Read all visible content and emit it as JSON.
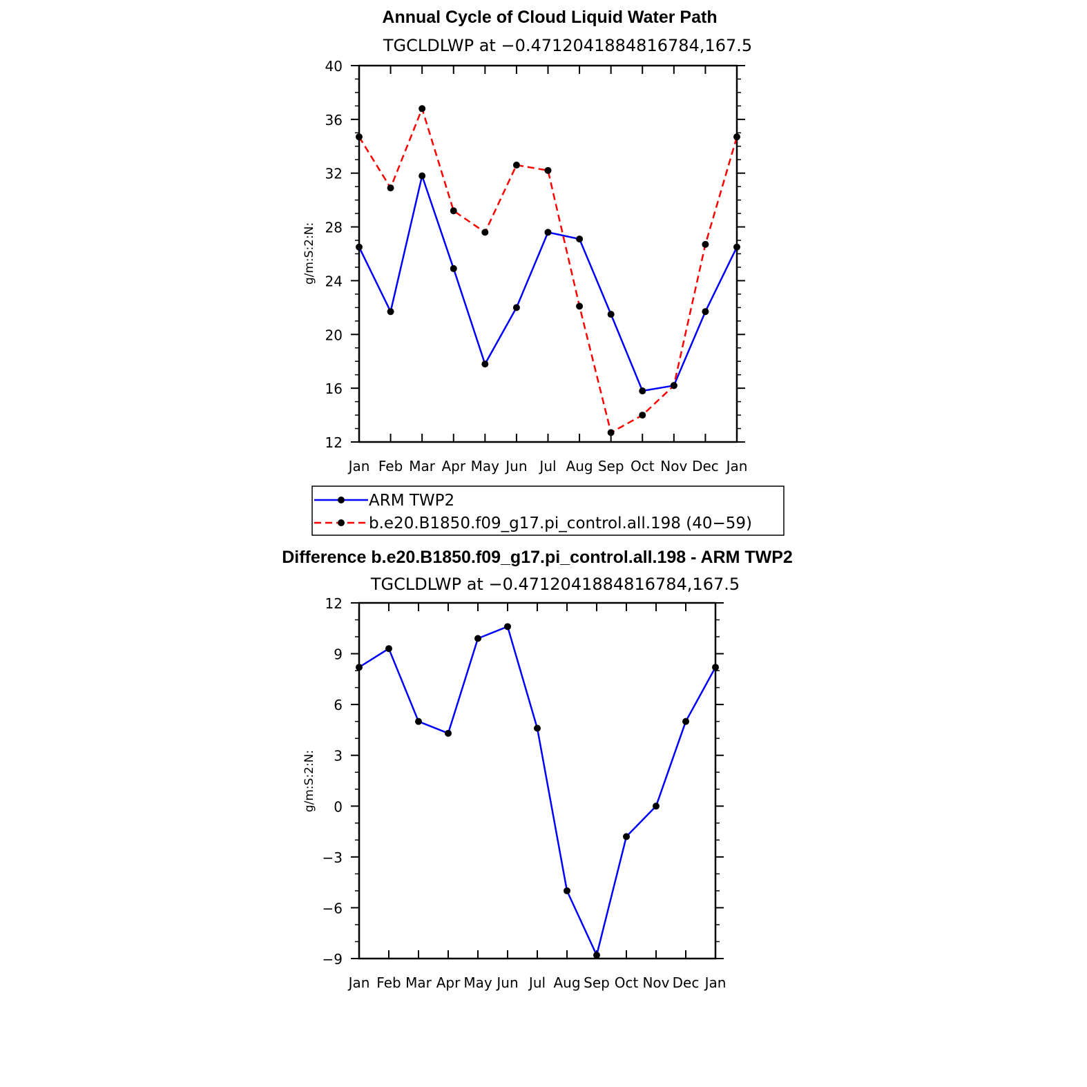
{
  "chart_data": [
    {
      "type": "line",
      "title": "Annual Cycle of Cloud Liquid Water Path",
      "subtitle": "TGCLDLWP at −0.4712041884816784,167.5",
      "ylabel": "g/m:S:2:N:",
      "ylim": [
        12,
        40
      ],
      "yticks": [
        "40",
        "36",
        "32",
        "28",
        "24",
        "20",
        "16",
        "12"
      ],
      "categories": [
        "Jan",
        "Feb",
        "Mar",
        "Apr",
        "May",
        "Jun",
        "Jul",
        "Aug",
        "Sep",
        "Oct",
        "Nov",
        "Dec",
        "Jan"
      ],
      "series": [
        {
          "name": "ARM TWP2",
          "color": "#0000ff",
          "dash": "solid",
          "values": [
            26.5,
            21.7,
            31.8,
            24.9,
            17.8,
            22.0,
            27.6,
            27.1,
            21.5,
            15.8,
            16.2,
            21.7,
            26.5
          ]
        },
        {
          "name": "b.e20.B1850.f09_g17.pi_control.all.198 (40−59)",
          "color": "#ff0000",
          "dash": "dashed",
          "values": [
            34.7,
            30.9,
            36.8,
            29.2,
            27.6,
            32.6,
            32.2,
            22.1,
            12.7,
            14.0,
            16.2,
            26.7,
            34.7
          ]
        }
      ],
      "legend_position": "bottom"
    },
    {
      "type": "line",
      "title": "Difference b.e20.B1850.f09_g17.pi_control.all.198 - ARM TWP2",
      "subtitle": "TGCLDLWP at −0.4712041884816784,167.5",
      "ylabel": "g/m:S:2:N:",
      "ylim": [
        -9,
        12
      ],
      "yticks": [
        "12",
        "9",
        "6",
        "3",
        "0",
        "−3",
        "−6",
        "−9"
      ],
      "categories": [
        "Jan",
        "Feb",
        "Mar",
        "Apr",
        "May",
        "Jun",
        "Jul",
        "Aug",
        "Sep",
        "Oct",
        "Nov",
        "Dec",
        "Jan"
      ],
      "series": [
        {
          "color": "#0000ff",
          "dash": "solid",
          "values": [
            8.2,
            9.3,
            5.0,
            4.3,
            9.9,
            10.6,
            4.6,
            -5.0,
            -8.8,
            -1.8,
            0.0,
            5.0,
            8.2
          ]
        }
      ]
    }
  ]
}
